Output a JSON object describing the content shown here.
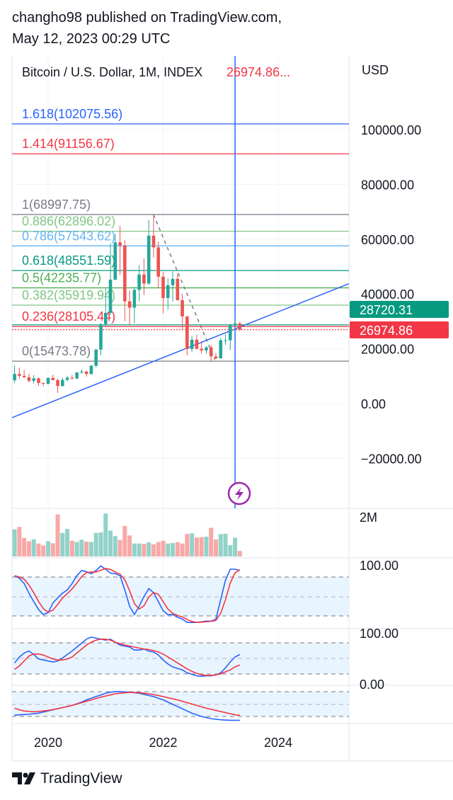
{
  "header": {
    "line1": "changho98 published on TradingView.com,",
    "line2": "May 12, 2023 00:29 UTC"
  },
  "legend": {
    "symbol": "Bitcoin / U.S. Dollar, 1M, INDEX",
    "price": "26974.86..."
  },
  "price_axis": {
    "currency": "USD"
  },
  "footer": {
    "brand": "TradingView"
  },
  "colors": {
    "up": "#26a69a",
    "down": "#ef5350",
    "vol_up": "#92d2c9",
    "vol_down": "#f7a9a7",
    "blue": "#2962ff",
    "red": "#f23645",
    "grid": "#f0f3fa",
    "band": "#e8f4fe"
  },
  "chart_data": {
    "type": "candlestick",
    "title": "Bitcoin / U.S. Dollar, 1M, INDEX",
    "x_start": "2019-06",
    "interval": "1M",
    "x_ticks": [
      {
        "label": "2020",
        "t": 2020
      },
      {
        "label": "2022",
        "t": 2022
      },
      {
        "label": "2024",
        "t": 2024
      }
    ],
    "y_ticks": [
      "100000.00",
      "80000.00",
      "60000.00",
      "40000.00",
      "20000.00",
      "0.00",
      "−20000.00"
    ],
    "y_tick_values": [
      100000,
      80000,
      60000,
      40000,
      20000,
      0,
      -20000
    ],
    "ohlc": [
      [
        8500,
        13800,
        7500,
        10800
      ],
      [
        10800,
        13100,
        9100,
        10100
      ],
      [
        10100,
        12300,
        9400,
        9600
      ],
      [
        9600,
        10900,
        7700,
        8300
      ],
      [
        8300,
        10400,
        7300,
        9200
      ],
      [
        9200,
        9500,
        6500,
        7500
      ],
      [
        7500,
        7700,
        6400,
        7200
      ],
      [
        7200,
        9600,
        6900,
        9350
      ],
      [
        9350,
        10500,
        8500,
        8550
      ],
      [
        8550,
        9200,
        3800,
        6400
      ],
      [
        6400,
        9450,
        6150,
        8650
      ],
      [
        8650,
        10100,
        8100,
        9450
      ],
      [
        9450,
        10400,
        8800,
        9140
      ],
      [
        9140,
        11450,
        8950,
        11350
      ],
      [
        11350,
        12470,
        10900,
        11650
      ],
      [
        11650,
        12050,
        9880,
        10780
      ],
      [
        10780,
        14100,
        10550,
        13800
      ],
      [
        13800,
        19900,
        13200,
        19700
      ],
      [
        19700,
        29300,
        17600,
        28990
      ],
      [
        28990,
        41950,
        28150,
        33100
      ],
      [
        33100,
        58350,
        32300,
        45200
      ],
      [
        45200,
        61800,
        45000,
        58800
      ],
      [
        58800,
        64900,
        47000,
        57700
      ],
      [
        57700,
        59600,
        30000,
        37300
      ],
      [
        37300,
        41300,
        28800,
        35000
      ],
      [
        35000,
        42600,
        29300,
        41500
      ],
      [
        41500,
        50500,
        37300,
        47100
      ],
      [
        47100,
        52900,
        39600,
        43800
      ],
      [
        43800,
        67000,
        43300,
        61300
      ],
      [
        61300,
        69000,
        53300,
        57000
      ],
      [
        57000,
        59100,
        42000,
        46300
      ],
      [
        46300,
        47990,
        32900,
        38500
      ],
      [
        38500,
        45800,
        34300,
        43200
      ],
      [
        43200,
        48200,
        37200,
        45500
      ],
      [
        45500,
        47400,
        37600,
        37700
      ],
      [
        37700,
        40000,
        26700,
        31800
      ],
      [
        31800,
        31900,
        17600,
        19900
      ],
      [
        19900,
        24700,
        18800,
        23300
      ],
      [
        23300,
        25200,
        19600,
        20000
      ],
      [
        20000,
        22800,
        18200,
        19400
      ],
      [
        19400,
        21000,
        18100,
        20500
      ],
      [
        20500,
        21400,
        15500,
        17200
      ],
      [
        17200,
        18400,
        16300,
        16500
      ],
      [
        16500,
        23900,
        16500,
        23100
      ],
      [
        23100,
        25300,
        21400,
        23100
      ],
      [
        23100,
        29200,
        19500,
        28500
      ],
      [
        28500,
        31000,
        26900,
        29250
      ],
      [
        29250,
        29800,
        26500,
        26975
      ]
    ],
    "fib_levels": [
      {
        "label": "1.618(102075.56)",
        "value": 102075.56,
        "color": "#2962ff"
      },
      {
        "label": "1.414(91156.67)",
        "value": 91156.67,
        "color": "#f23645"
      },
      {
        "label": "1(68997.75)",
        "value": 68997.75,
        "color": "#787b86"
      },
      {
        "label": "0.886(62896.02)",
        "value": 62896.02,
        "color": "#81c784"
      },
      {
        "label": "0.786(57543.62)",
        "value": 57543.62,
        "color": "#64b5f6"
      },
      {
        "label": "0.618(48551.59)",
        "value": 48551.59,
        "color": "#089981"
      },
      {
        "label": "0.5(42235.77)",
        "value": 42235.77,
        "color": "#4caf50"
      },
      {
        "label": "0.382(35919.94)",
        "value": 35919.94,
        "color": "#81c784"
      },
      {
        "label": "0.236(28105.44)",
        "value": 28105.44,
        "color": "#f23645"
      },
      {
        "label": "0(15473.78)",
        "value": 15473.78,
        "color": "#787b86"
      }
    ],
    "trend_line": {
      "t1": 2019.37,
      "v1": -5170,
      "t2": 2025.25,
      "v2": 43900
    },
    "dashed_line": {
      "t1": 2021.83,
      "v1": 69000,
      "t2": 2022.9,
      "v2": 16000
    },
    "vertical_line_t": 2023.25,
    "price_labels": [
      {
        "text": "28720.31",
        "value": 28720.31,
        "color": "#089981"
      },
      {
        "text": "26974.86",
        "value": 26974.86,
        "color": "#f23645"
      }
    ],
    "volume": {
      "label": "2M",
      "max": 2,
      "values": [
        1.28,
        1.39,
        0.87,
        0.72,
        0.81,
        0.61,
        0.52,
        0.72,
        0.62,
        1.98,
        1.11,
        1.3,
        0.74,
        0.68,
        0.79,
        0.7,
        0.68,
        1.11,
        1.13,
        2.02,
        1.22,
        0.96,
        0.78,
        1.44,
        0.99,
        0.61,
        0.61,
        0.59,
        0.66,
        0.57,
        0.68,
        0.74,
        0.61,
        0.63,
        0.67,
        0.61,
        1.06,
        1.09,
        0.89,
        0.91,
        0.93,
        1.35,
        0.8,
        1.05,
        1.07,
        0.53,
        0.88,
        0.26
      ]
    },
    "stoch": {
      "label": "100.00",
      "k": [
        82,
        78,
        70,
        55,
        42,
        30,
        22,
        25,
        40,
        48,
        55,
        60,
        70,
        82,
        90,
        88,
        85,
        90,
        97,
        92,
        86,
        85,
        82,
        60,
        35,
        22,
        35,
        50,
        62,
        56,
        42,
        28,
        22,
        22,
        18,
        15,
        10,
        10,
        10,
        11,
        12,
        12,
        15,
        45,
        75,
        92,
        92,
        90
      ]
    },
    "osc2": {
      "label_top": "100.00",
      "label_bottom": "0.00",
      "blue": [
        38,
        50,
        58,
        62,
        55,
        46,
        44,
        42,
        40,
        42,
        48,
        55,
        62,
        70,
        78,
        86,
        90,
        88,
        86,
        84,
        86,
        80,
        74,
        72,
        70,
        64,
        64,
        66,
        62,
        60,
        54,
        44,
        36,
        30,
        27,
        24,
        18,
        15,
        12,
        11,
        12,
        12,
        14,
        18,
        28,
        40,
        50,
        55
      ],
      "red": [
        25,
        32,
        42,
        52,
        56,
        56,
        54,
        50,
        46,
        44,
        44,
        46,
        50,
        58,
        66,
        74,
        80,
        84,
        86,
        86,
        84,
        80,
        77,
        74,
        72,
        70,
        68,
        66,
        65,
        63,
        60,
        56,
        50,
        44,
        38,
        32,
        26,
        21,
        17,
        14,
        13,
        13,
        14,
        16,
        20,
        24,
        30,
        34
      ]
    },
    "osc3": {
      "blue": [
        5,
        6,
        7,
        8,
        10,
        12,
        16,
        20,
        24,
        28,
        32,
        36,
        40,
        46,
        52,
        60,
        66,
        72,
        78,
        84,
        88,
        90,
        90,
        89,
        88,
        86,
        84,
        80,
        76,
        72,
        66,
        60,
        52,
        44,
        36,
        28,
        20,
        12,
        6,
        0,
        -4,
        -8,
        -10,
        -12,
        -13,
        -14,
        -14,
        -14
      ],
      "red": [
        30,
        24,
        20,
        18,
        17,
        18,
        20,
        22,
        25,
        28,
        32,
        36,
        40,
        45,
        50,
        55,
        60,
        65,
        70,
        74,
        78,
        82,
        84,
        86,
        87,
        87,
        86,
        84,
        82,
        79,
        76,
        72,
        68,
        64,
        60,
        55,
        50,
        45,
        40,
        35,
        30,
        26,
        22,
        18,
        14,
        10,
        6,
        4
      ]
    }
  }
}
